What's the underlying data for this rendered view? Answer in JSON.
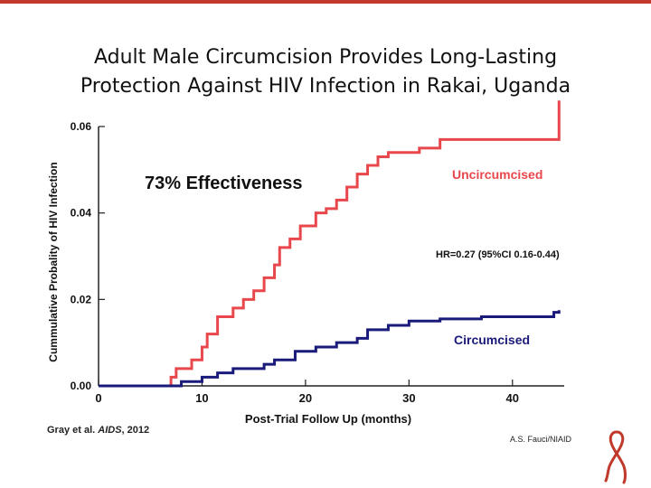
{
  "slide": {
    "title_line1": "Adult Male Circumcision Provides Long-Lasting",
    "title_line2": "Protection Against HIV Infection in Rakai, Uganda",
    "citation_authors": "Gray et al.",
    "citation_journal": "AIDS",
    "citation_year": ", 2012",
    "credit": "A.S. Fauci/NIAID",
    "accent_color": "#c0392b"
  },
  "chart_data": {
    "type": "line",
    "title": "",
    "xlabel": "Post-Trial Follow Up (months)",
    "ylabel": "Cummulative Probality of HIV Infection",
    "xlim": [
      0,
      45
    ],
    "ylim": [
      0,
      0.06
    ],
    "x_ticks": [
      0,
      10,
      20,
      30,
      40
    ],
    "y_ticks": [
      0.0,
      0.02,
      0.04,
      0.06
    ],
    "y_tick_labels": [
      "0.00",
      "0.02",
      "0.04",
      "0.06"
    ],
    "annotations": {
      "effectiveness": "73% Effectiveness",
      "hazard_ratio": "HR=0.27 (95%CI 0.16-0.44)"
    },
    "series": [
      {
        "name": "Uncircumcised",
        "color": "#e8474c",
        "points": [
          [
            0,
            0
          ],
          [
            6.5,
            0
          ],
          [
            7,
            0.002
          ],
          [
            7.5,
            0.004
          ],
          [
            9,
            0.006
          ],
          [
            10,
            0.009
          ],
          [
            10.5,
            0.012
          ],
          [
            11.5,
            0.016
          ],
          [
            13,
            0.018
          ],
          [
            14,
            0.02
          ],
          [
            15,
            0.022
          ],
          [
            16,
            0.025
          ],
          [
            17,
            0.028
          ],
          [
            17.5,
            0.032
          ],
          [
            18.5,
            0.034
          ],
          [
            19.5,
            0.037
          ],
          [
            21,
            0.04
          ],
          [
            22,
            0.041
          ],
          [
            23,
            0.043
          ],
          [
            24,
            0.046
          ],
          [
            25,
            0.049
          ],
          [
            26,
            0.051
          ],
          [
            27,
            0.053
          ],
          [
            28,
            0.054
          ],
          [
            31,
            0.055
          ],
          [
            33,
            0.057
          ],
          [
            42,
            0.057
          ],
          [
            44.5,
            0.059
          ],
          [
            44.5,
            0.066
          ]
        ]
      },
      {
        "name": "Circumcised",
        "color": "#1a1a7a",
        "points": [
          [
            0,
            0
          ],
          [
            7,
            0
          ],
          [
            8,
            0.001
          ],
          [
            10,
            0.002
          ],
          [
            11.5,
            0.003
          ],
          [
            13,
            0.004
          ],
          [
            16,
            0.005
          ],
          [
            17,
            0.006
          ],
          [
            19,
            0.008
          ],
          [
            21,
            0.009
          ],
          [
            23,
            0.01
          ],
          [
            25,
            0.011
          ],
          [
            26,
            0.013
          ],
          [
            28,
            0.014
          ],
          [
            30,
            0.015
          ],
          [
            33,
            0.0155
          ],
          [
            37,
            0.016
          ],
          [
            44,
            0.017
          ],
          [
            44.5,
            0.0175
          ]
        ]
      }
    ]
  }
}
